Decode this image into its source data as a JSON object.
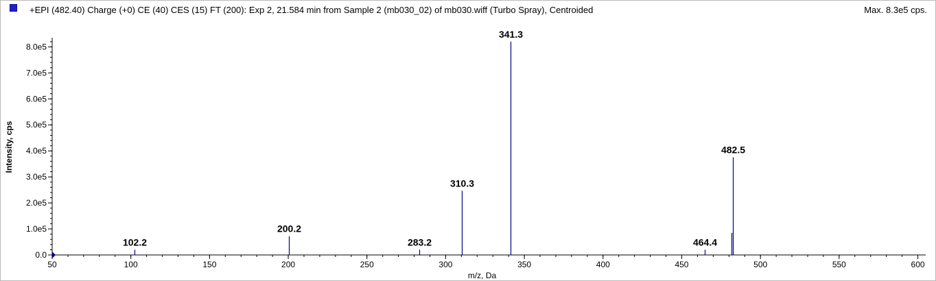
{
  "header": {
    "title": "+EPI (482.40) Charge (+0) CE (40) CES (15) FT (200): Exp 2, 21.584 min from Sample 2 (mb030_02) of mb030.wiff (Turbo Spray), Centroided",
    "max_label": "Max. 8.3e5 cps.",
    "swatch_color": "#1f1fd8"
  },
  "chart_data": {
    "type": "bar",
    "xlabel": "m/z, Da",
    "ylabel": "Intensity, cps",
    "xlim": [
      50,
      605
    ],
    "ylim": [
      0,
      830000
    ],
    "x_ticks": [
      50,
      100,
      150,
      200,
      250,
      300,
      350,
      400,
      450,
      500,
      550,
      600
    ],
    "y_ticks": [
      {
        "value": 0,
        "label": "0.0"
      },
      {
        "value": 100000,
        "label": "1.0e5"
      },
      {
        "value": 200000,
        "label": "2.0e5"
      },
      {
        "value": 300000,
        "label": "3.0e5"
      },
      {
        "value": 400000,
        "label": "4.0e5"
      },
      {
        "value": 500000,
        "label": "5.0e5"
      },
      {
        "value": 600000,
        "label": "6.0e5"
      },
      {
        "value": 700000,
        "label": "7.0e5"
      },
      {
        "value": 800000,
        "label": "8.0e5"
      }
    ],
    "grid": false,
    "line_color": "#00008b",
    "peaks": [
      {
        "mz": 102.2,
        "intensity": 20000,
        "label": "102.2"
      },
      {
        "mz": 200.2,
        "intensity": 72000,
        "label": "200.2"
      },
      {
        "mz": 283.2,
        "intensity": 20000,
        "label": "283.2"
      },
      {
        "mz": 310.3,
        "intensity": 247000,
        "label": "310.3"
      },
      {
        "mz": 341.3,
        "intensity": 820000,
        "label": "341.3"
      },
      {
        "mz": 464.4,
        "intensity": 20000,
        "label": "464.4"
      },
      {
        "mz": 481.6,
        "intensity": 85000,
        "label": ""
      },
      {
        "mz": 482.5,
        "intensity": 375000,
        "label": "482.5"
      }
    ]
  }
}
